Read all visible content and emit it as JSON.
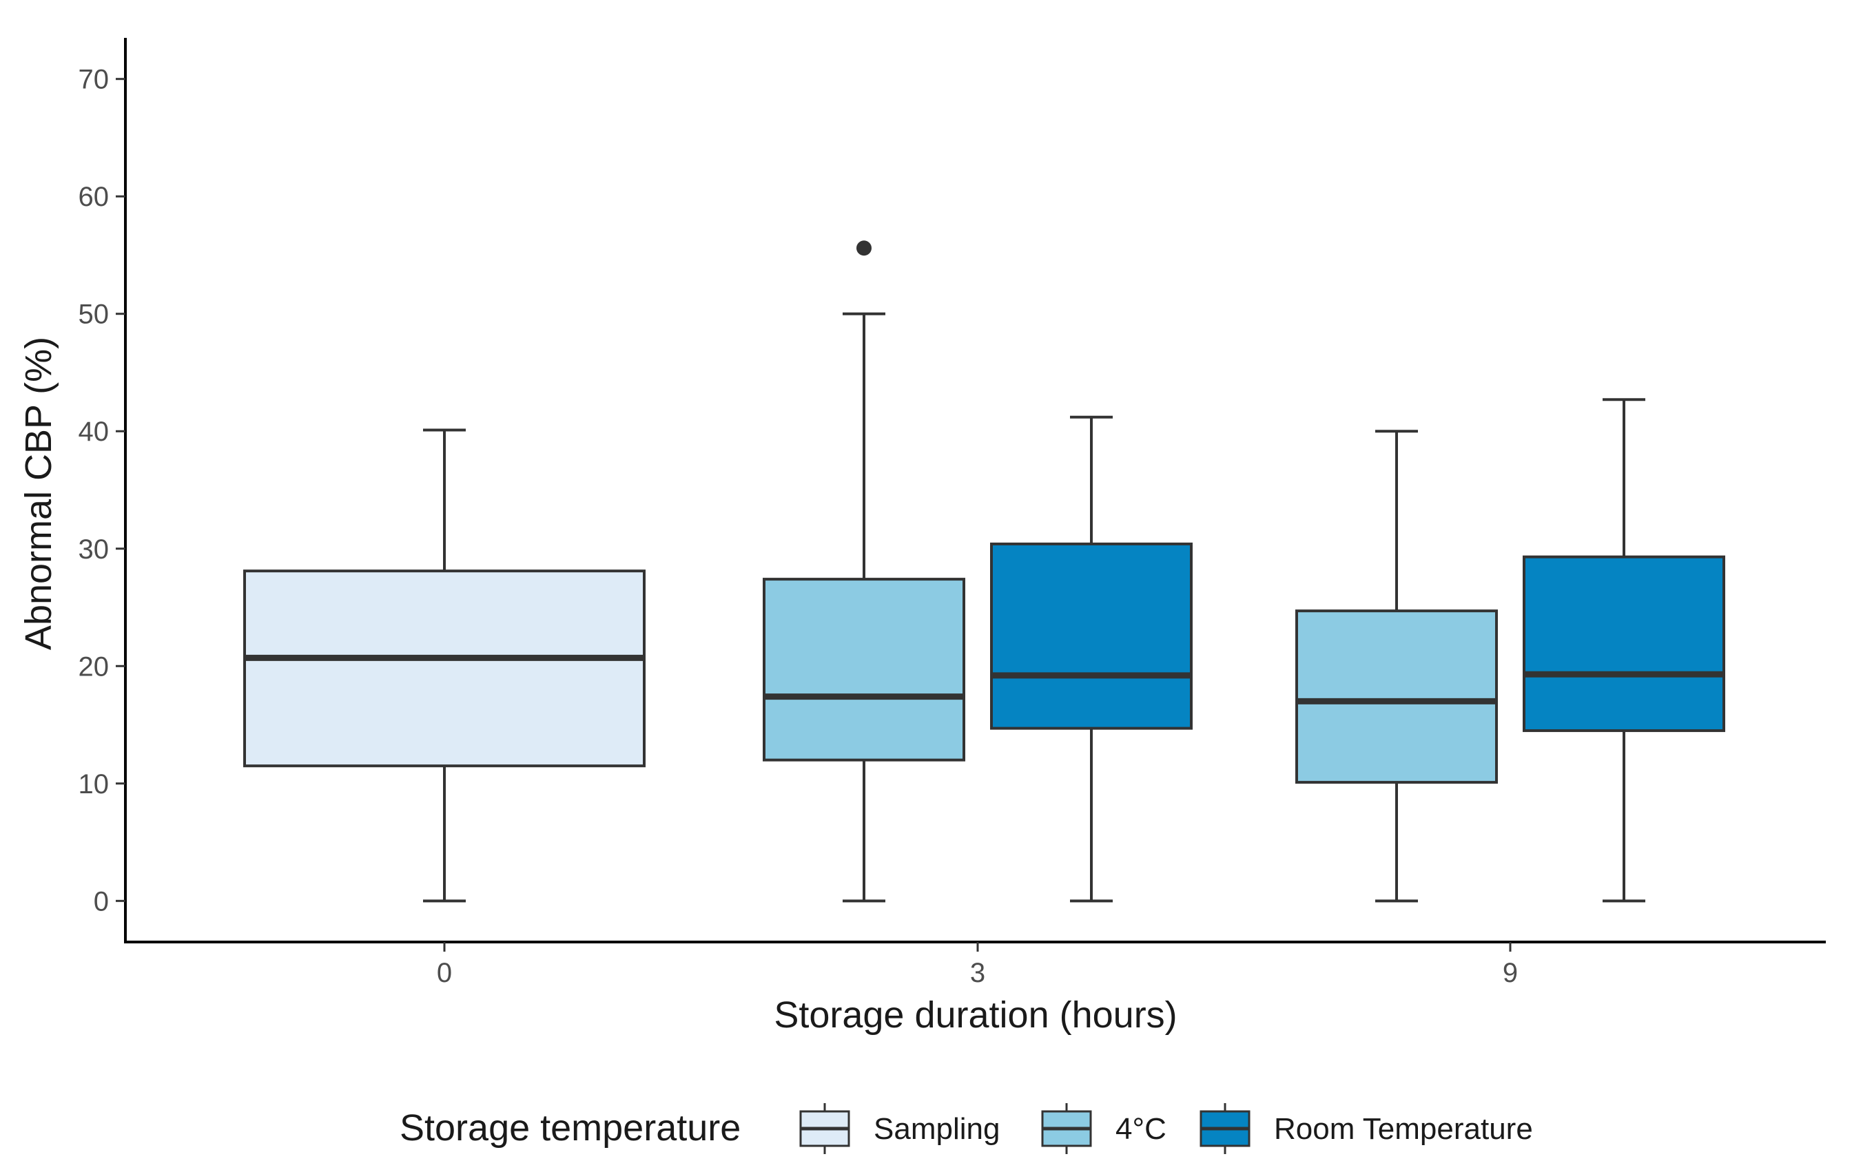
{
  "chart_data": {
    "type": "boxplot",
    "xlabel": "Storage duration (hours)",
    "ylabel": "Abnormal CBP (%)",
    "ylim": [
      -3.5,
      73.5
    ],
    "yticks": [
      0,
      10,
      20,
      30,
      40,
      50,
      60,
      70
    ],
    "categories": [
      "0",
      "3",
      "9"
    ],
    "grid": false,
    "legend": {
      "title": "Storage temperature",
      "placement": "bottom",
      "entries": [
        {
          "name": "Sampling",
          "color": "#deebf7"
        },
        {
          "name": "4°C",
          "color": "#8ccbe3"
        },
        {
          "name": "Room Temperature",
          "color": "#0584c2"
        }
      ]
    },
    "boxes": [
      {
        "category": "0",
        "series": "Sampling",
        "min": 0,
        "q1": 11.5,
        "median": 20.7,
        "q3": 28.1,
        "max": 40.1,
        "outliers": []
      },
      {
        "category": "3",
        "series": "4°C",
        "min": 0,
        "q1": 12.0,
        "median": 17.4,
        "q3": 27.4,
        "max": 50.0,
        "outliers": [
          55.6
        ]
      },
      {
        "category": "3",
        "series": "Room Temperature",
        "min": 0,
        "q1": 14.7,
        "median": 19.2,
        "q3": 30.4,
        "max": 41.2,
        "outliers": []
      },
      {
        "category": "9",
        "series": "4°C",
        "min": 0,
        "q1": 10.1,
        "median": 17.0,
        "q3": 24.7,
        "max": 40.0,
        "outliers": []
      },
      {
        "category": "9",
        "series": "Room Temperature",
        "min": 0,
        "q1": 14.5,
        "median": 19.3,
        "q3": 29.3,
        "max": 42.7,
        "outliers": []
      }
    ]
  }
}
